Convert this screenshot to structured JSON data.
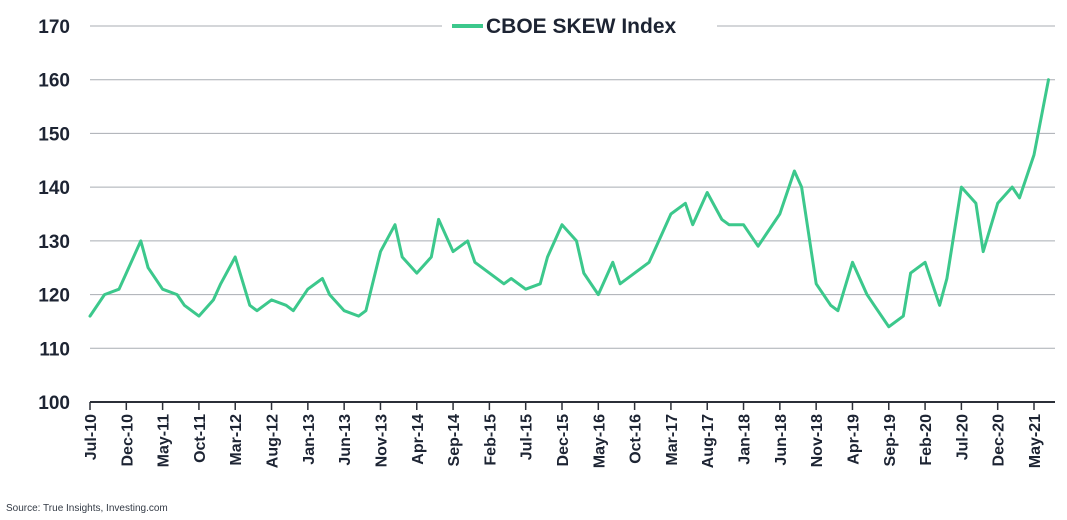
{
  "chart_data": {
    "type": "line",
    "title": "",
    "xlabel": "",
    "ylabel": "",
    "ylim": [
      100,
      170
    ],
    "yticks": [
      "100",
      "110",
      "120",
      "130",
      "140",
      "150",
      "160",
      "170"
    ],
    "grid": true,
    "legend": "top-center",
    "x_tick_labels": [
      "Jul-10",
      "Dec-10",
      "May-11",
      "Oct-11",
      "Mar-12",
      "Aug-12",
      "Jan-13",
      "Jun-13",
      "Nov-13",
      "Apr-14",
      "Sep-14",
      "Feb-15",
      "Jul-15",
      "Dec-15",
      "May-16",
      "Oct-16",
      "Mar-17",
      "Aug-17",
      "Jan-18",
      "Jun-18",
      "Nov-18",
      "Apr-19",
      "Sep-19",
      "Feb-20",
      "Jul-20",
      "Dec-20",
      "May-21"
    ],
    "series": [
      {
        "name": "CBOE SKEW Index",
        "color": "#3cc88c",
        "x": [
          "Jul-10",
          "Sep-10",
          "Nov-10",
          "Dec-10",
          "Feb-11",
          "Mar-11",
          "May-11",
          "Jul-11",
          "Aug-11",
          "Oct-11",
          "Dec-11",
          "Jan-12",
          "Mar-12",
          "May-12",
          "Jun-12",
          "Aug-12",
          "Oct-12",
          "Nov-12",
          "Jan-13",
          "Mar-13",
          "Apr-13",
          "Jun-13",
          "Aug-13",
          "Sep-13",
          "Nov-13",
          "Jan-14",
          "Feb-14",
          "Apr-14",
          "Jun-14",
          "Jul-14",
          "Sep-14",
          "Nov-14",
          "Dec-14",
          "Feb-15",
          "Apr-15",
          "May-15",
          "Jul-15",
          "Sep-15",
          "Oct-15",
          "Dec-15",
          "Feb-16",
          "Mar-16",
          "May-16",
          "Jul-16",
          "Aug-16",
          "Oct-16",
          "Dec-16",
          "Jan-17",
          "Mar-17",
          "May-17",
          "Jun-17",
          "Aug-17",
          "Oct-17",
          "Nov-17",
          "Jan-18",
          "Mar-18",
          "Apr-18",
          "Jun-18",
          "Aug-18",
          "Sep-18",
          "Nov-18",
          "Jan-19",
          "Feb-19",
          "Apr-19",
          "Jun-19",
          "Jul-19",
          "Sep-19",
          "Nov-19",
          "Dec-19",
          "Feb-20",
          "Apr-20",
          "May-20",
          "Jul-20",
          "Sep-20",
          "Oct-20",
          "Dec-20",
          "Feb-21",
          "Mar-21",
          "May-21",
          "Jul-21"
        ],
        "values": [
          116,
          120,
          121,
          124,
          130,
          125,
          121,
          120,
          118,
          116,
          119,
          122,
          127,
          118,
          117,
          119,
          118,
          117,
          121,
          123,
          120,
          117,
          116,
          117,
          128,
          133,
          127,
          124,
          127,
          134,
          128,
          130,
          126,
          124,
          122,
          123,
          121,
          122,
          127,
          133,
          130,
          124,
          120,
          126,
          122,
          124,
          126,
          129,
          135,
          137,
          133,
          139,
          134,
          133,
          133,
          129,
          131,
          135,
          143,
          140,
          122,
          118,
          117,
          126,
          120,
          118,
          114,
          116,
          124,
          126,
          118,
          123,
          140,
          137,
          128,
          137,
          140,
          138,
          146,
          160
        ]
      }
    ]
  },
  "source_note": "Source: True Insights, Investing.com"
}
